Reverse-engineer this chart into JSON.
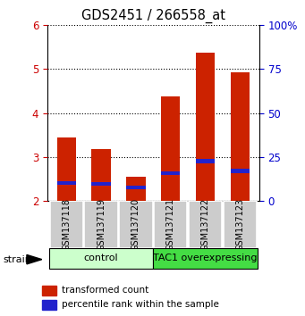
{
  "title": "GDS2451 / 266558_at",
  "samples": [
    "GSM137118",
    "GSM137119",
    "GSM137120",
    "GSM137121",
    "GSM137122",
    "GSM137123"
  ],
  "transformed_counts": [
    3.45,
    3.18,
    2.55,
    4.38,
    5.38,
    4.93
  ],
  "percentile_ranks": [
    2.4,
    2.38,
    2.3,
    2.63,
    2.9,
    2.68
  ],
  "ylim": [
    2,
    6
  ],
  "yticks": [
    2,
    3,
    4,
    5,
    6
  ],
  "right_ylim": [
    0,
    100
  ],
  "right_yticks": [
    0,
    25,
    50,
    75,
    100
  ],
  "bar_bottom": 2.0,
  "bar_width": 0.55,
  "red_color": "#cc2200",
  "blue_color": "#2222cc",
  "groups": [
    {
      "label": "control",
      "samples": [
        0,
        1,
        2
      ],
      "color": "#ccffcc"
    },
    {
      "label": "TAC1 overexpressing",
      "samples": [
        3,
        4,
        5
      ],
      "color": "#44dd44"
    }
  ],
  "strain_label": "strain",
  "left_tick_color": "#cc0000",
  "right_tick_color": "#0000cc",
  "grid_color": "#000000",
  "sample_area_color": "#cccccc",
  "legend_red_label": "transformed count",
  "legend_blue_label": "percentile rank within the sample"
}
